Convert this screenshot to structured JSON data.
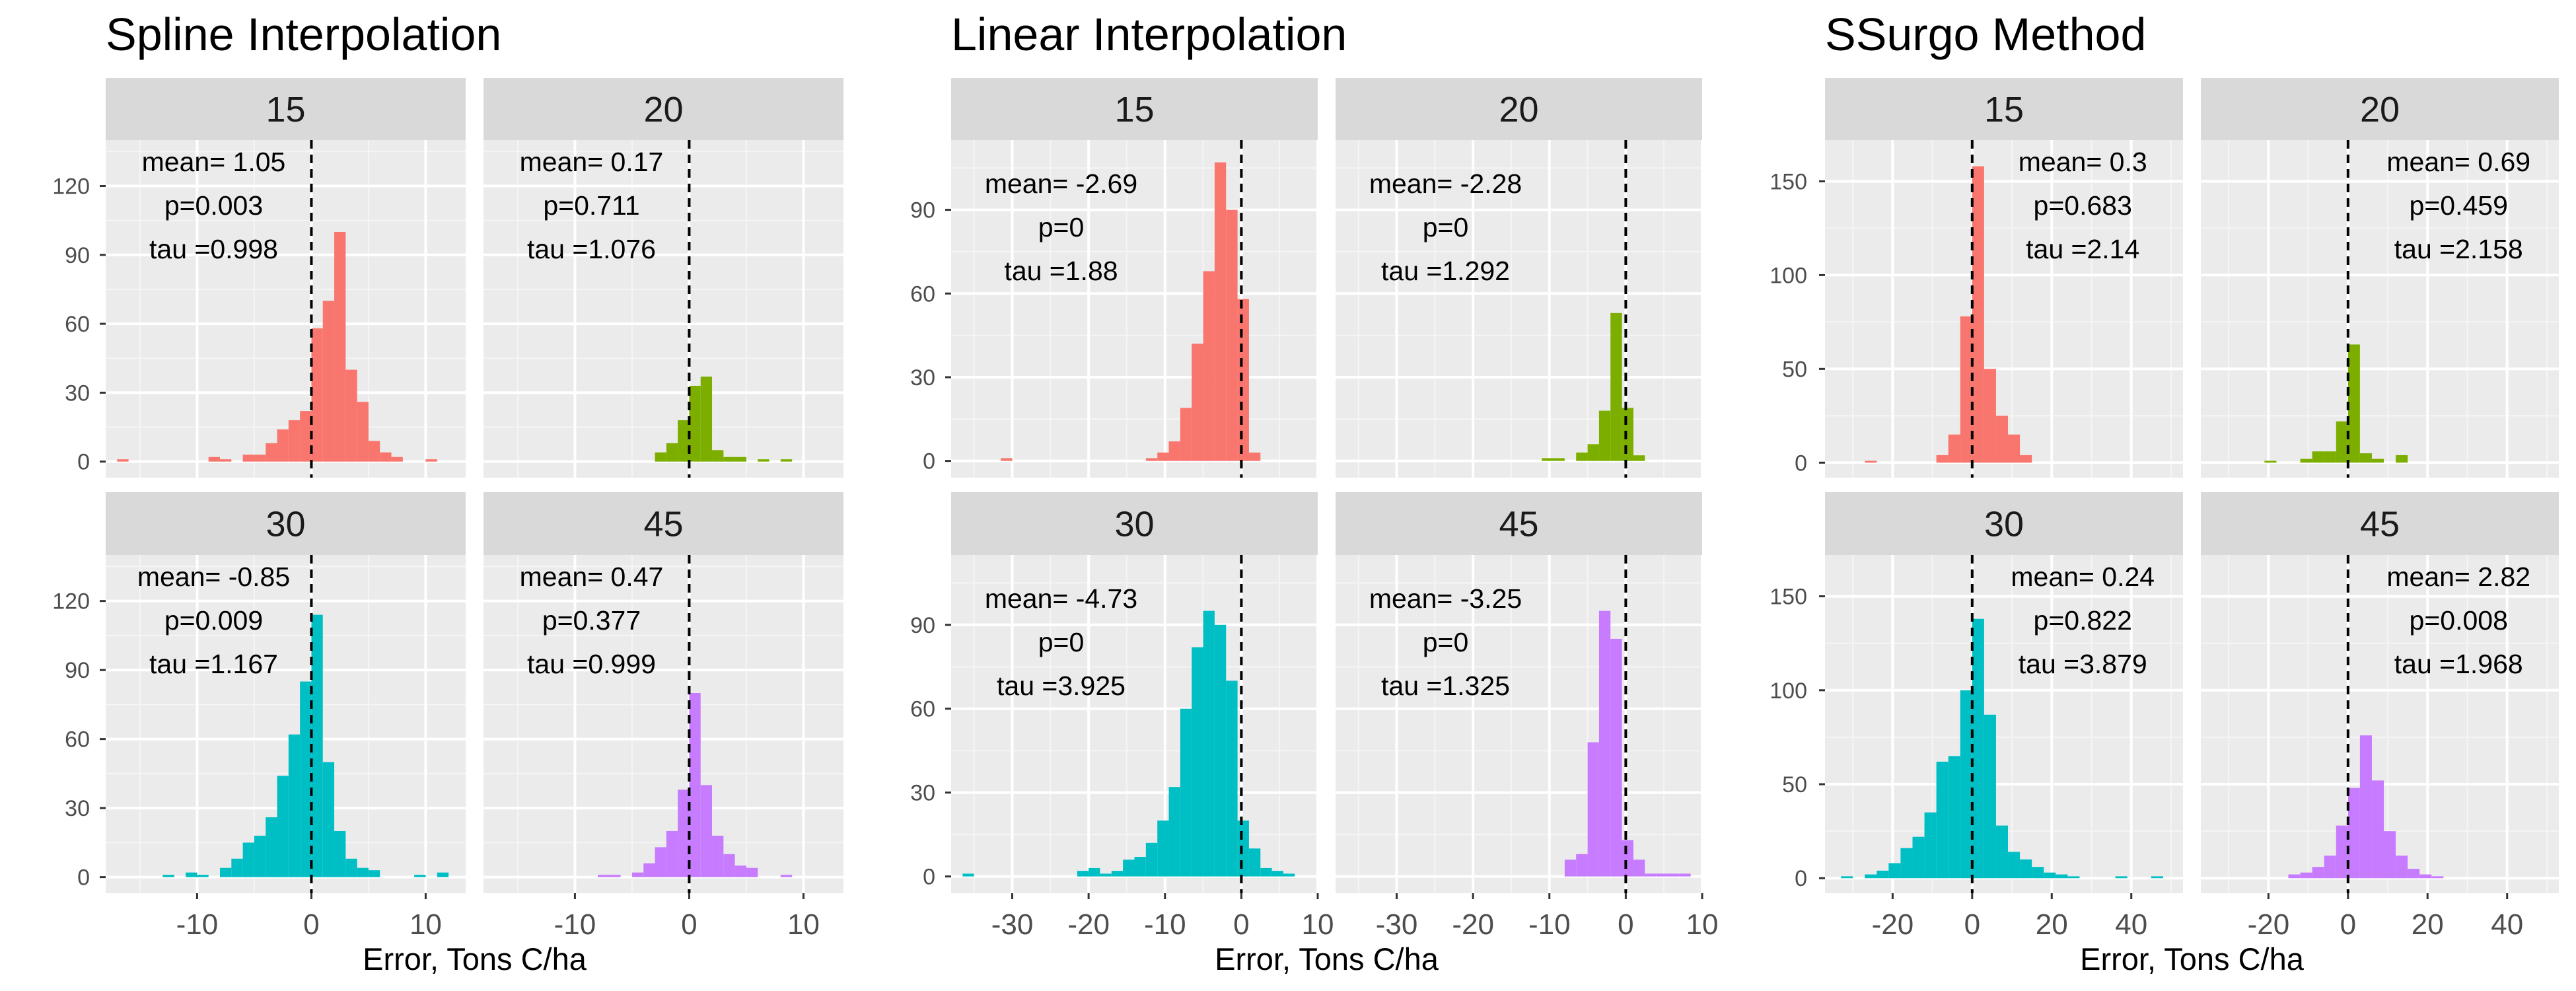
{
  "chart_data": [
    {
      "type": "bar",
      "title": "Spline Interpolation",
      "xlabel": "Error, Tons C/ha",
      "ylabel": "",
      "xlim": [
        -18,
        13.5
      ],
      "ylim": [
        -7,
        140
      ],
      "xticks": [
        -10,
        0,
        10
      ],
      "yticks": [
        0,
        30,
        60,
        90,
        120
      ],
      "bin_width": 1,
      "facets": [
        {
          "label": "15",
          "color": "#F8766D",
          "annotation": {
            "mean": "mean= 1.05",
            "p": "p=0.003",
            "tau": "tau =0.998"
          },
          "bins": [
            [
              -16.5,
              1
            ],
            [
              -8.5,
              2
            ],
            [
              -7.5,
              1
            ],
            [
              -5.5,
              3
            ],
            [
              -4.5,
              3
            ],
            [
              -3.5,
              8
            ],
            [
              -2.5,
              14
            ],
            [
              -1.5,
              18
            ],
            [
              -0.5,
              22
            ],
            [
              0.5,
              58
            ],
            [
              1.5,
              70
            ],
            [
              2.5,
              100
            ],
            [
              3.5,
              40
            ],
            [
              4.5,
              26
            ],
            [
              5.5,
              9
            ],
            [
              6.5,
              4
            ],
            [
              7.5,
              2
            ],
            [
              10.5,
              1
            ]
          ]
        },
        {
          "label": "20",
          "color": "#7CAE00",
          "annotation": {
            "mean": "mean= 0.17",
            "p": "p=0.711",
            "tau": "tau =1.076"
          },
          "bins": [
            [
              -2.5,
              4
            ],
            [
              -1.5,
              8
            ],
            [
              -0.5,
              18
            ],
            [
              0.5,
              33
            ],
            [
              1.5,
              37
            ],
            [
              2.5,
              5
            ],
            [
              3.5,
              2
            ],
            [
              4.5,
              2
            ],
            [
              6.5,
              1
            ],
            [
              8.5,
              1
            ]
          ]
        },
        {
          "label": "30",
          "color": "#00BFC4",
          "annotation": {
            "mean": "mean= -0.85",
            "p": "p=0.009",
            "tau": "tau =1.167"
          },
          "bins": [
            [
              -12.5,
              1
            ],
            [
              -10.5,
              2
            ],
            [
              -9.5,
              1
            ],
            [
              -7.5,
              4
            ],
            [
              -6.5,
              8
            ],
            [
              -5.5,
              15
            ],
            [
              -4.5,
              18
            ],
            [
              -3.5,
              26
            ],
            [
              -2.5,
              44
            ],
            [
              -1.5,
              62
            ],
            [
              -0.5,
              85
            ],
            [
              0.5,
              114
            ],
            [
              1.5,
              50
            ],
            [
              2.5,
              20
            ],
            [
              3.5,
              8
            ],
            [
              4.5,
              4
            ],
            [
              5.5,
              3
            ],
            [
              9.5,
              1
            ],
            [
              11.5,
              2
            ]
          ]
        },
        {
          "label": "45",
          "color": "#C77CFF",
          "annotation": {
            "mean": "mean= 0.47",
            "p": "p=0.377",
            "tau": "tau =0.999"
          },
          "bins": [
            [
              -7.5,
              1
            ],
            [
              -6.5,
              1
            ],
            [
              -4.5,
              2
            ],
            [
              -3.5,
              6
            ],
            [
              -2.5,
              13
            ],
            [
              -1.5,
              20
            ],
            [
              -0.5,
              38
            ],
            [
              0.5,
              80
            ],
            [
              1.5,
              40
            ],
            [
              2.5,
              18
            ],
            [
              3.5,
              10
            ],
            [
              4.5,
              5
            ],
            [
              5.5,
              4
            ],
            [
              8.5,
              1
            ]
          ]
        }
      ]
    },
    {
      "type": "bar",
      "title": "Linear Interpolation",
      "xlabel": "Error, Tons C/ha",
      "ylabel": "",
      "xlim": [
        -38,
        10
      ],
      "ylim": [
        -6,
        115
      ],
      "xticks": [
        -30,
        -20,
        -10,
        0,
        10
      ],
      "yticks": [
        0,
        30,
        60,
        90
      ],
      "bin_width": 1.5,
      "facets": [
        {
          "label": "15",
          "color": "#F8766D",
          "annotation": {
            "mean": "mean= -2.69",
            "p": "p=0",
            "tau": "tau =1.88"
          },
          "bins": [
            [
              -30.75,
              1
            ],
            [
              -11.75,
              1
            ],
            [
              -10.25,
              3
            ],
            [
              -8.75,
              7
            ],
            [
              -7.25,
              19
            ],
            [
              -5.75,
              42
            ],
            [
              -4.25,
              68
            ],
            [
              -2.75,
              107
            ],
            [
              -1.25,
              90
            ],
            [
              0.25,
              58
            ],
            [
              1.75,
              3
            ]
          ]
        },
        {
          "label": "20",
          "color": "#7CAE00",
          "annotation": {
            "mean": "mean= -2.28",
            "p": "p=0",
            "tau": "tau =1.292"
          },
          "bins": [
            [
              -10.25,
              1
            ],
            [
              -8.75,
              1
            ],
            [
              -5.75,
              3
            ],
            [
              -4.25,
              6
            ],
            [
              -2.75,
              18
            ],
            [
              -1.25,
              53
            ],
            [
              0.25,
              19
            ],
            [
              1.75,
              2
            ]
          ]
        },
        {
          "label": "30",
          "color": "#00BFC4",
          "annotation": {
            "mean": "mean= -4.73",
            "p": "p=0",
            "tau": "tau =3.925"
          },
          "bins": [
            [
              -35.75,
              1
            ],
            [
              -20.75,
              2
            ],
            [
              -19.25,
              3
            ],
            [
              -17.75,
              1
            ],
            [
              -16.25,
              2
            ],
            [
              -14.75,
              6
            ],
            [
              -13.25,
              7
            ],
            [
              -11.75,
              12
            ],
            [
              -10.25,
              20
            ],
            [
              -8.75,
              32
            ],
            [
              -7.25,
              60
            ],
            [
              -5.75,
              82
            ],
            [
              -4.25,
              95
            ],
            [
              -2.75,
              90
            ],
            [
              -1.25,
              70
            ],
            [
              0.25,
              20
            ],
            [
              1.75,
              10
            ],
            [
              3.25,
              3
            ],
            [
              4.75,
              2
            ],
            [
              6.25,
              1
            ]
          ]
        },
        {
          "label": "45",
          "color": "#C77CFF",
          "annotation": {
            "mean": "mean= -3.25",
            "p": "p=0",
            "tau": "tau =1.325"
          },
          "bins": [
            [
              -7.25,
              6
            ],
            [
              -5.75,
              8
            ],
            [
              -4.25,
              48
            ],
            [
              -2.75,
              95
            ],
            [
              -1.25,
              85
            ],
            [
              0.25,
              13
            ],
            [
              1.75,
              6
            ],
            [
              3.25,
              1
            ],
            [
              4.75,
              1
            ],
            [
              6.25,
              1
            ],
            [
              7.75,
              1
            ]
          ]
        }
      ]
    },
    {
      "type": "bar",
      "title": "SSurgo Method",
      "xlabel": "Error, Tons C/ha",
      "ylabel": "",
      "xlim": [
        -37,
        53
      ],
      "ylim": [
        -8,
        172
      ],
      "xticks": [
        -20,
        0,
        20,
        40
      ],
      "yticks": [
        0,
        50,
        100,
        150
      ],
      "bin_width": 3,
      "facets": [
        {
          "label": "15",
          "color": "#F8766D",
          "annotation": {
            "mean": "mean= 0.3",
            "p": "p=0.683",
            "tau": "tau =2.14"
          },
          "bins": [
            [
              -25.5,
              1
            ],
            [
              -7.5,
              4
            ],
            [
              -4.5,
              15
            ],
            [
              -1.5,
              78
            ],
            [
              1.5,
              158
            ],
            [
              4.5,
              50
            ],
            [
              7.5,
              25
            ],
            [
              10.5,
              15
            ],
            [
              13.5,
              4
            ]
          ]
        },
        {
          "label": "20",
          "color": "#7CAE00",
          "annotation": {
            "mean": "mean= 0.69",
            "p": "p=0.459",
            "tau": "tau =2.158"
          },
          "bins": [
            [
              -19.5,
              1
            ],
            [
              -10.5,
              2
            ],
            [
              -7.5,
              6
            ],
            [
              -4.5,
              6
            ],
            [
              -1.5,
              22
            ],
            [
              1.5,
              63
            ],
            [
              4.5,
              5
            ],
            [
              7.5,
              2
            ],
            [
              13.5,
              4
            ]
          ]
        },
        {
          "label": "30",
          "color": "#00BFC4",
          "annotation": {
            "mean": "mean= 0.24",
            "p": "p=0.822",
            "tau": "tau =3.879"
          },
          "bins": [
            [
              -31.5,
              1
            ],
            [
              -25.5,
              2
            ],
            [
              -22.5,
              4
            ],
            [
              -19.5,
              8
            ],
            [
              -16.5,
              16
            ],
            [
              -13.5,
              22
            ],
            [
              -10.5,
              35
            ],
            [
              -7.5,
              62
            ],
            [
              -4.5,
              65
            ],
            [
              -1.5,
              100
            ],
            [
              1.5,
              138
            ],
            [
              4.5,
              87
            ],
            [
              7.5,
              28
            ],
            [
              10.5,
              14
            ],
            [
              13.5,
              10
            ],
            [
              16.5,
              6
            ],
            [
              19.5,
              3
            ],
            [
              22.5,
              2
            ],
            [
              25.5,
              1
            ],
            [
              37.5,
              1
            ],
            [
              46.5,
              1
            ]
          ]
        },
        {
          "label": "45",
          "color": "#C77CFF",
          "annotation": {
            "mean": "mean= 2.82",
            "p": "p=0.008",
            "tau": "tau =1.968"
          },
          "bins": [
            [
              -13.5,
              2
            ],
            [
              -10.5,
              3
            ],
            [
              -7.5,
              6
            ],
            [
              -4.5,
              12
            ],
            [
              -1.5,
              28
            ],
            [
              1.5,
              48
            ],
            [
              4.5,
              76
            ],
            [
              7.5,
              52
            ],
            [
              10.5,
              25
            ],
            [
              13.5,
              12
            ],
            [
              16.5,
              5
            ],
            [
              19.5,
              2
            ],
            [
              22.5,
              1
            ]
          ]
        }
      ]
    }
  ]
}
